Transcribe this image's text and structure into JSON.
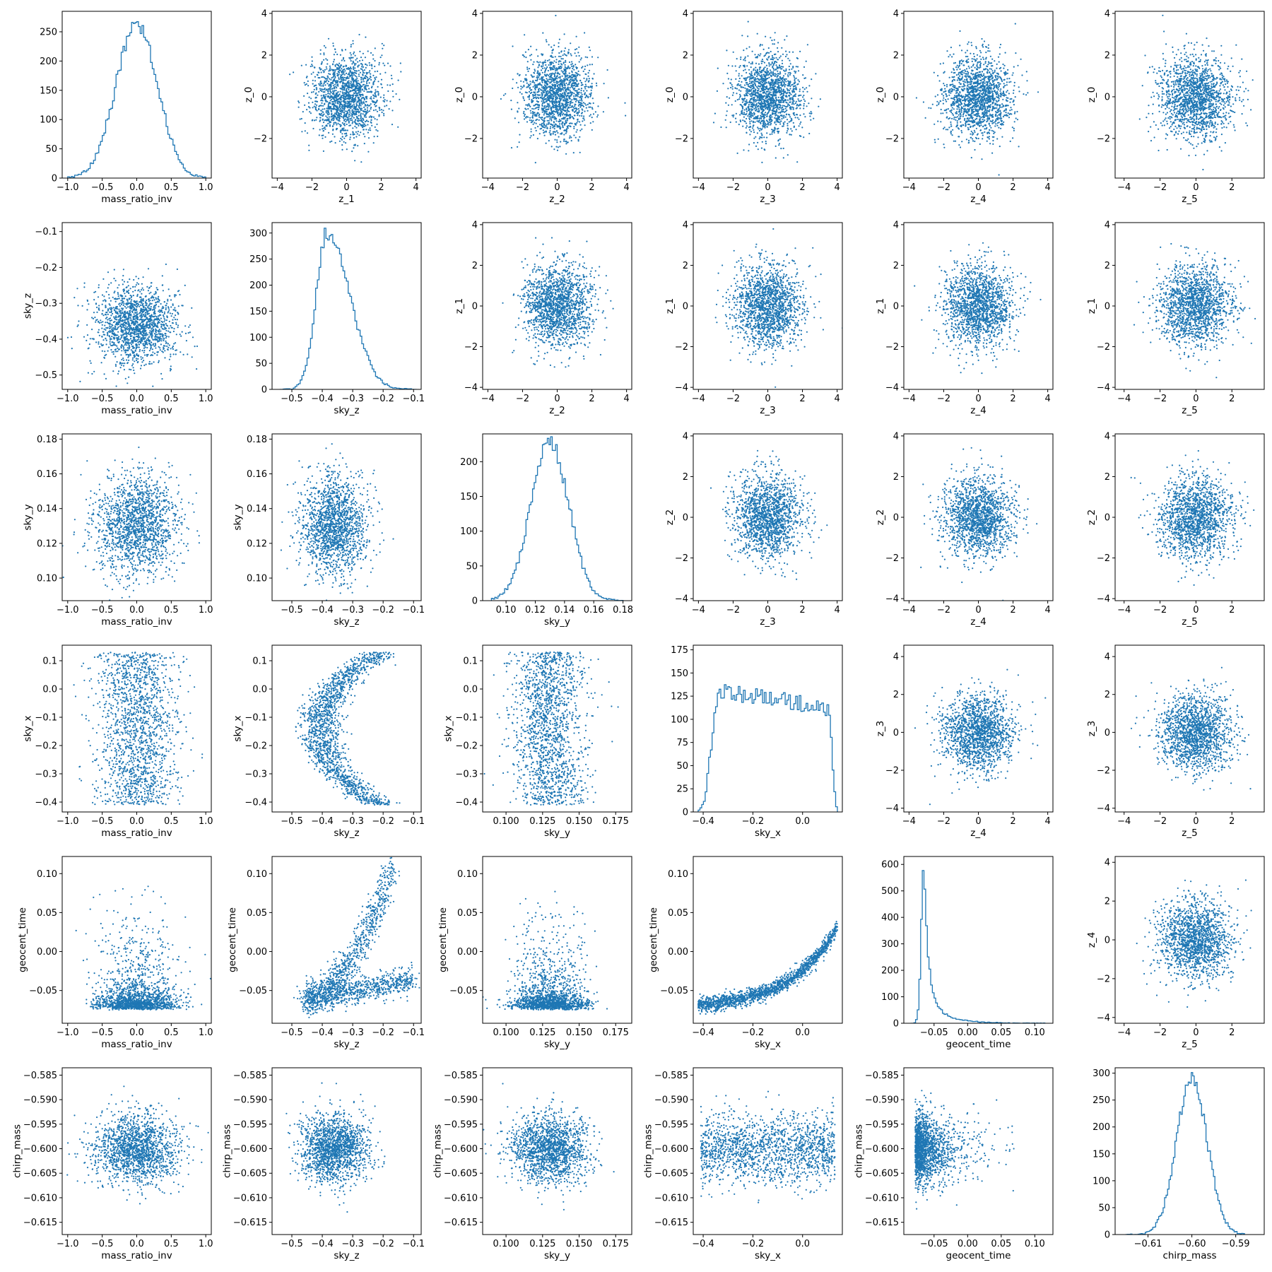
{
  "figure": {
    "layout": "6x6 corner plot",
    "marker_color": "#1f77b4"
  },
  "chart_data": [
    {
      "type": "histogram",
      "row": 0,
      "col": 0,
      "xlabel": "mass_ratio_inv",
      "ylabel": "",
      "xlim": [
        -1.08,
        1.08
      ],
      "ylim": [
        0,
        285
      ],
      "xticks": [
        -1.0,
        -0.5,
        0.0,
        0.5,
        1.0
      ],
      "yticks": [
        0,
        50,
        100,
        150,
        200,
        250
      ],
      "shape": {
        "kind": "normal",
        "peak": 265,
        "mean": 0.0,
        "sd": 0.3,
        "range": [
          -1.0,
          1.0
        ]
      }
    },
    {
      "type": "scatter",
      "row": 0,
      "col": 1,
      "xlabel": "z_1",
      "ylabel": "z_0",
      "xlim": [
        -4.3,
        4.3
      ],
      "ylim": [
        -3.9,
        4.1
      ],
      "xticks": [
        -4,
        -2,
        0,
        2,
        4
      ],
      "yticks": [
        -2,
        0,
        2,
        4
      ],
      "shape": {
        "kind": "gauss",
        "mx": 0,
        "sx": 1,
        "my": 0,
        "sy": 1
      }
    },
    {
      "type": "scatter",
      "row": 0,
      "col": 2,
      "xlabel": "z_2",
      "ylabel": "z_0",
      "xlim": [
        -4.3,
        4.3
      ],
      "ylim": [
        -3.9,
        4.1
      ],
      "xticks": [
        -4,
        -2,
        0,
        2,
        4
      ],
      "yticks": [
        -2,
        0,
        2,
        4
      ],
      "shape": {
        "kind": "gauss",
        "mx": 0,
        "sx": 1,
        "my": 0,
        "sy": 1
      }
    },
    {
      "type": "scatter",
      "row": 0,
      "col": 3,
      "xlabel": "z_3",
      "ylabel": "z_0",
      "xlim": [
        -4.3,
        4.3
      ],
      "ylim": [
        -3.9,
        4.1
      ],
      "xticks": [
        -4,
        -2,
        0,
        2,
        4
      ],
      "yticks": [
        -2,
        0,
        2,
        4
      ],
      "shape": {
        "kind": "gauss",
        "mx": 0,
        "sx": 1,
        "my": 0,
        "sy": 1
      }
    },
    {
      "type": "scatter",
      "row": 0,
      "col": 4,
      "xlabel": "z_4",
      "ylabel": "z_0",
      "xlim": [
        -4.3,
        4.3
      ],
      "ylim": [
        -3.9,
        4.1
      ],
      "xticks": [
        -4,
        -2,
        0,
        2,
        4
      ],
      "yticks": [
        -2,
        0,
        2,
        4
      ],
      "shape": {
        "kind": "gauss",
        "mx": 0,
        "sx": 1,
        "my": 0,
        "sy": 1
      }
    },
    {
      "type": "scatter",
      "row": 0,
      "col": 5,
      "xlabel": "z_5",
      "ylabel": "z_0",
      "xlim": [
        -4.5,
        3.8
      ],
      "ylim": [
        -3.9,
        4.1
      ],
      "xticks": [
        -4,
        -2,
        0,
        2
      ],
      "yticks": [
        -2,
        0,
        2,
        4
      ],
      "shape": {
        "kind": "gauss",
        "mx": 0,
        "sx": 1,
        "my": 0,
        "sy": 1
      }
    },
    {
      "type": "scatter",
      "row": 1,
      "col": 0,
      "xlabel": "mass_ratio_inv",
      "ylabel": "sky_z",
      "xlim": [
        -1.08,
        1.08
      ],
      "ylim": [
        -0.54,
        -0.075
      ],
      "xticks": [
        -1.0,
        -0.5,
        0.0,
        0.5,
        1.0
      ],
      "yticks": [
        -0.5,
        -0.4,
        -0.3,
        -0.2,
        -0.1
      ],
      "shape": {
        "kind": "gauss",
        "mx": 0,
        "sx": 0.3,
        "my": -0.36,
        "sy": 0.055
      }
    },
    {
      "type": "histogram",
      "row": 1,
      "col": 1,
      "xlabel": "sky_z",
      "ylabel": "",
      "xlim": [
        -0.565,
        -0.075
      ],
      "ylim": [
        0,
        320
      ],
      "xticks": [
        -0.5,
        -0.4,
        -0.3,
        -0.2,
        -0.1
      ],
      "yticks": [
        0,
        50,
        100,
        150,
        200,
        250,
        300
      ],
      "shape": {
        "kind": "skew",
        "peak": 300,
        "mode": -0.385,
        "sdl": 0.035,
        "sdr": 0.075,
        "range": [
          -0.54,
          -0.09
        ]
      }
    },
    {
      "type": "scatter",
      "row": 1,
      "col": 2,
      "xlabel": "z_2",
      "ylabel": "z_1",
      "xlim": [
        -4.3,
        4.3
      ],
      "ylim": [
        -4.1,
        4.1
      ],
      "xticks": [
        -4,
        -2,
        0,
        2,
        4
      ],
      "yticks": [
        -4,
        -2,
        0,
        2,
        4
      ],
      "shape": {
        "kind": "gauss",
        "mx": 0,
        "sx": 1,
        "my": 0,
        "sy": 1
      }
    },
    {
      "type": "scatter",
      "row": 1,
      "col": 3,
      "xlabel": "z_3",
      "ylabel": "z_1",
      "xlim": [
        -4.3,
        4.3
      ],
      "ylim": [
        -4.1,
        4.1
      ],
      "xticks": [
        -4,
        -2,
        0,
        2,
        4
      ],
      "yticks": [
        -4,
        -2,
        0,
        2,
        4
      ],
      "shape": {
        "kind": "gauss",
        "mx": 0,
        "sx": 1,
        "my": 0,
        "sy": 1
      }
    },
    {
      "type": "scatter",
      "row": 1,
      "col": 4,
      "xlabel": "z_4",
      "ylabel": "z_1",
      "xlim": [
        -4.3,
        4.3
      ],
      "ylim": [
        -4.1,
        4.1
      ],
      "xticks": [
        -4,
        -2,
        0,
        2,
        4
      ],
      "yticks": [
        -4,
        -2,
        0,
        2,
        4
      ],
      "shape": {
        "kind": "gauss",
        "mx": 0,
        "sx": 1,
        "my": 0,
        "sy": 1
      }
    },
    {
      "type": "scatter",
      "row": 1,
      "col": 5,
      "xlabel": "z_5",
      "ylabel": "z_1",
      "xlim": [
        -4.5,
        3.8
      ],
      "ylim": [
        -4.1,
        4.1
      ],
      "xticks": [
        -4,
        -2,
        0,
        2
      ],
      "yticks": [
        -4,
        -2,
        0,
        2,
        4
      ],
      "shape": {
        "kind": "gauss",
        "mx": 0,
        "sx": 1,
        "my": 0,
        "sy": 1
      }
    },
    {
      "type": "scatter",
      "row": 2,
      "col": 0,
      "xlabel": "mass_ratio_inv",
      "ylabel": "sky_y",
      "xlim": [
        -1.08,
        1.08
      ],
      "ylim": [
        0.087,
        0.183
      ],
      "xticks": [
        -1.0,
        -0.5,
        0.0,
        0.5,
        1.0
      ],
      "yticks": [
        0.1,
        0.12,
        0.14,
        0.16,
        0.18
      ],
      "shape": {
        "kind": "gauss",
        "mx": 0,
        "sx": 0.3,
        "my": 0.13,
        "sy": 0.014
      }
    },
    {
      "type": "scatter",
      "row": 2,
      "col": 1,
      "xlabel": "sky_z",
      "ylabel": "sky_y",
      "xlim": [
        -0.565,
        -0.075
      ],
      "ylim": [
        0.087,
        0.183
      ],
      "xticks": [
        -0.5,
        -0.4,
        -0.3,
        -0.2,
        -0.1
      ],
      "yticks": [
        0.1,
        0.12,
        0.14,
        0.16,
        0.18
      ],
      "shape": {
        "kind": "gauss",
        "mx": -0.36,
        "sx": 0.055,
        "my": 0.13,
        "sy": 0.014
      }
    },
    {
      "type": "histogram",
      "row": 2,
      "col": 2,
      "xlabel": "sky_y",
      "ylabel": "",
      "xlim": [
        0.084,
        0.186
      ],
      "ylim": [
        0,
        240
      ],
      "xticks": [
        0.1,
        0.12,
        0.14,
        0.16,
        0.18
      ],
      "yticks": [
        0,
        50,
        100,
        150,
        200
      ],
      "shape": {
        "kind": "normal",
        "peak": 228,
        "mean": 0.13,
        "sd": 0.013,
        "range": [
          0.09,
          0.18
        ]
      }
    },
    {
      "type": "scatter",
      "row": 2,
      "col": 3,
      "xlabel": "z_3",
      "ylabel": "z_2",
      "xlim": [
        -4.3,
        4.3
      ],
      "ylim": [
        -4.1,
        4.1
      ],
      "xticks": [
        -4,
        -2,
        0,
        2,
        4
      ],
      "yticks": [
        -4,
        -2,
        0,
        2,
        4
      ],
      "shape": {
        "kind": "gauss",
        "mx": 0,
        "sx": 1,
        "my": 0,
        "sy": 1
      }
    },
    {
      "type": "scatter",
      "row": 2,
      "col": 4,
      "xlabel": "z_4",
      "ylabel": "z_2",
      "xlim": [
        -4.3,
        4.3
      ],
      "ylim": [
        -4.1,
        4.1
      ],
      "xticks": [
        -4,
        -2,
        0,
        2,
        4
      ],
      "yticks": [
        -4,
        -2,
        0,
        2,
        4
      ],
      "shape": {
        "kind": "gauss",
        "mx": 0,
        "sx": 1,
        "my": 0,
        "sy": 1
      }
    },
    {
      "type": "scatter",
      "row": 2,
      "col": 5,
      "xlabel": "z_5",
      "ylabel": "z_2",
      "xlim": [
        -4.5,
        3.8
      ],
      "ylim": [
        -4.1,
        4.1
      ],
      "xticks": [
        -4,
        -2,
        0,
        2
      ],
      "yticks": [
        -4,
        -2,
        0,
        2,
        4
      ],
      "shape": {
        "kind": "gauss",
        "mx": 0,
        "sx": 1,
        "my": 0,
        "sy": 1
      }
    },
    {
      "type": "scatter",
      "row": 3,
      "col": 0,
      "xlabel": "mass_ratio_inv",
      "ylabel": "sky_x",
      "xlim": [
        -1.08,
        1.08
      ],
      "ylim": [
        -0.435,
        0.155
      ],
      "xticks": [
        -1.0,
        -0.5,
        0.0,
        0.5,
        1.0
      ],
      "yticks": [
        -0.4,
        -0.3,
        -0.2,
        -0.1,
        0.0,
        0.1
      ],
      "shape": {
        "kind": "gauss_uniform",
        "mx": 0,
        "sx": 0.3,
        "ymin": -0.41,
        "ymax": 0.13
      }
    },
    {
      "type": "scatter",
      "row": 3,
      "col": 1,
      "xlabel": "sky_z",
      "ylabel": "sky_x",
      "xlim": [
        -0.565,
        -0.075
      ],
      "ylim": [
        -0.435,
        0.155
      ],
      "xticks": [
        -0.5,
        -0.4,
        -0.3,
        -0.2,
        -0.1
      ],
      "yticks": [
        -0.4,
        -0.3,
        -0.2,
        -0.1,
        0.0,
        0.1
      ],
      "shape": {
        "kind": "crescent",
        "ymin": -0.41,
        "ymax": 0.13
      }
    },
    {
      "type": "scatter",
      "row": 3,
      "col": 2,
      "xlabel": "sky_y",
      "ylabel": "sky_x",
      "xlim": [
        0.084,
        0.186
      ],
      "ylim": [
        -0.435,
        0.155
      ],
      "xticks": [
        0.1,
        0.125,
        0.15,
        0.175
      ],
      "yticks": [
        -0.4,
        -0.3,
        -0.2,
        -0.1,
        0.0,
        0.1
      ],
      "shape": {
        "kind": "gauss_uniform",
        "mx": 0.13,
        "sx": 0.012,
        "ymin": -0.41,
        "ymax": 0.13
      }
    },
    {
      "type": "histogram",
      "row": 3,
      "col": 3,
      "xlabel": "sky_x",
      "ylabel": "",
      "xlim": [
        -0.44,
        0.16
      ],
      "ylim": [
        0,
        180
      ],
      "xticks": [
        -0.4,
        -0.2,
        0.0
      ],
      "yticks": [
        0,
        25,
        50,
        75,
        100,
        125,
        150,
        175
      ],
      "shape": {
        "kind": "plateau",
        "height": 135,
        "range": [
          -0.42,
          0.14
        ]
      }
    },
    {
      "type": "scatter",
      "row": 3,
      "col": 4,
      "xlabel": "z_4",
      "ylabel": "z_3",
      "xlim": [
        -4.3,
        4.3
      ],
      "ylim": [
        -4.2,
        4.6
      ],
      "xticks": [
        -4,
        -2,
        0,
        2,
        4
      ],
      "yticks": [
        -4,
        -2,
        0,
        2,
        4
      ],
      "shape": {
        "kind": "gauss",
        "mx": 0,
        "sx": 1,
        "my": 0,
        "sy": 1
      }
    },
    {
      "type": "scatter",
      "row": 3,
      "col": 5,
      "xlabel": "z_5",
      "ylabel": "z_3",
      "xlim": [
        -4.5,
        3.8
      ],
      "ylim": [
        -4.2,
        4.6
      ],
      "xticks": [
        -4,
        -2,
        0,
        2
      ],
      "yticks": [
        -4,
        -2,
        0,
        2,
        4
      ],
      "shape": {
        "kind": "gauss",
        "mx": 0,
        "sx": 1,
        "my": 0,
        "sy": 1
      }
    },
    {
      "type": "scatter",
      "row": 4,
      "col": 0,
      "xlabel": "mass_ratio_inv",
      "ylabel": "geocent_time",
      "xlim": [
        -1.08,
        1.08
      ],
      "ylim": [
        -0.092,
        0.122
      ],
      "xticks": [
        -1.0,
        -0.5,
        0.0,
        0.5,
        1.0
      ],
      "yticks": [
        -0.05,
        0.0,
        0.05,
        0.1
      ],
      "shape": {
        "kind": "gauss_skew",
        "mx": 0,
        "sx": 0.3,
        "floor": -0.075,
        "scale": 0.04
      }
    },
    {
      "type": "scatter",
      "row": 4,
      "col": 1,
      "xlabel": "sky_z",
      "ylabel": "geocent_time",
      "xlim": [
        -0.565,
        -0.075
      ],
      "ylim": [
        -0.092,
        0.122
      ],
      "xticks": [
        -0.5,
        -0.4,
        -0.3,
        -0.2,
        -0.1
      ],
      "yticks": [
        -0.05,
        0.0,
        0.05,
        0.1
      ],
      "shape": {
        "kind": "chevron"
      }
    },
    {
      "type": "scatter",
      "row": 4,
      "col": 2,
      "xlabel": "sky_y",
      "ylabel": "geocent_time",
      "xlim": [
        0.084,
        0.186
      ],
      "ylim": [
        -0.092,
        0.122
      ],
      "xticks": [
        0.1,
        0.125,
        0.15,
        0.175
      ],
      "yticks": [
        -0.05,
        0.0,
        0.05,
        0.1
      ],
      "shape": {
        "kind": "gauss_skew",
        "mx": 0.13,
        "sx": 0.013,
        "floor": -0.075,
        "scale": 0.04
      }
    },
    {
      "type": "scatter",
      "row": 4,
      "col": 3,
      "xlabel": "sky_x",
      "ylabel": "geocent_time",
      "xlim": [
        -0.44,
        0.16
      ],
      "ylim": [
        -0.092,
        0.122
      ],
      "xticks": [
        -0.4,
        -0.2,
        0.0
      ],
      "yticks": [
        -0.05,
        0.0,
        0.05,
        0.1
      ],
      "shape": {
        "kind": "curve"
      }
    },
    {
      "type": "histogram",
      "row": 4,
      "col": 4,
      "xlabel": "geocent_time",
      "ylabel": "",
      "xlim": [
        -0.095,
        0.127
      ],
      "ylim": [
        0,
        630
      ],
      "xticks": [
        -0.05,
        0.0,
        0.05,
        0.1
      ],
      "yticks": [
        0,
        100,
        200,
        300,
        400,
        500,
        600
      ],
      "shape": {
        "kind": "spike",
        "peak": 600,
        "mode": -0.065,
        "sdl": 0.004,
        "tau": 0.03,
        "range": [
          -0.085,
          0.115
        ]
      }
    },
    {
      "type": "scatter",
      "row": 4,
      "col": 5,
      "xlabel": "z_5",
      "ylabel": "z_4",
      "xlim": [
        -4.5,
        3.8
      ],
      "ylim": [
        -4.3,
        4.3
      ],
      "xticks": [
        -4,
        -2,
        0,
        2
      ],
      "yticks": [
        -4,
        -2,
        0,
        2,
        4
      ],
      "shape": {
        "kind": "gauss",
        "mx": 0,
        "sx": 1,
        "my": 0,
        "sy": 1
      }
    },
    {
      "type": "scatter",
      "row": 5,
      "col": 0,
      "xlabel": "mass_ratio_inv",
      "ylabel": "chirp_mass",
      "xlim": [
        -1.08,
        1.08
      ],
      "ylim": [
        -0.6175,
        -0.5835
      ],
      "xticks": [
        -1.0,
        -0.5,
        0.0,
        0.5,
        1.0
      ],
      "yticks": [
        -0.615,
        -0.61,
        -0.605,
        -0.6,
        -0.595,
        -0.59,
        -0.585
      ],
      "shape": {
        "kind": "gauss",
        "mx": 0,
        "sx": 0.3,
        "my": -0.6,
        "sy": 0.0035
      }
    },
    {
      "type": "scatter",
      "row": 5,
      "col": 1,
      "xlabel": "sky_z",
      "ylabel": "chirp_mass",
      "xlim": [
        -0.565,
        -0.075
      ],
      "ylim": [
        -0.6175,
        -0.5835
      ],
      "xticks": [
        -0.5,
        -0.4,
        -0.3,
        -0.2,
        -0.1
      ],
      "yticks": [
        -0.615,
        -0.61,
        -0.605,
        -0.6,
        -0.595,
        -0.59,
        -0.585
      ],
      "shape": {
        "kind": "gauss",
        "mx": -0.36,
        "sx": 0.055,
        "my": -0.6,
        "sy": 0.0035
      }
    },
    {
      "type": "scatter",
      "row": 5,
      "col": 2,
      "xlabel": "sky_y",
      "ylabel": "chirp_mass",
      "xlim": [
        0.084,
        0.186
      ],
      "ylim": [
        -0.6175,
        -0.5835
      ],
      "xticks": [
        0.1,
        0.125,
        0.15,
        0.175
      ],
      "yticks": [
        -0.615,
        -0.61,
        -0.605,
        -0.6,
        -0.595,
        -0.59,
        -0.585
      ],
      "shape": {
        "kind": "gauss",
        "mx": 0.13,
        "sx": 0.013,
        "my": -0.6,
        "sy": 0.0035
      }
    },
    {
      "type": "scatter",
      "row": 5,
      "col": 3,
      "xlabel": "sky_x",
      "ylabel": "chirp_mass",
      "xlim": [
        -0.44,
        0.16
      ],
      "ylim": [
        -0.6175,
        -0.5835
      ],
      "xticks": [
        -0.4,
        -0.2,
        0.0
      ],
      "yticks": [
        -0.615,
        -0.61,
        -0.605,
        -0.6,
        -0.595,
        -0.59,
        -0.585
      ],
      "shape": {
        "kind": "uniform_gauss",
        "xmin": -0.41,
        "xmax": 0.13,
        "my": -0.6,
        "sy": 0.0035
      }
    },
    {
      "type": "scatter",
      "row": 5,
      "col": 4,
      "xlabel": "geocent_time",
      "ylabel": "chirp_mass",
      "xlim": [
        -0.095,
        0.127
      ],
      "ylim": [
        -0.6175,
        -0.5835
      ],
      "xticks": [
        -0.05,
        0.0,
        0.05,
        0.1
      ],
      "yticks": [
        -0.615,
        -0.61,
        -0.605,
        -0.6,
        -0.595,
        -0.59,
        -0.585
      ],
      "shape": {
        "kind": "skewx_gauss",
        "floor": -0.078,
        "scale": 0.035,
        "my": -0.6,
        "sy": 0.0035
      }
    },
    {
      "type": "histogram",
      "row": 5,
      "col": 5,
      "xlabel": "chirp_mass",
      "ylabel": "",
      "xlim": [
        -0.6175,
        -0.5835
      ],
      "ylim": [
        0,
        310
      ],
      "xticks": [
        -0.61,
        -0.6,
        -0.59
      ],
      "yticks": [
        0,
        50,
        100,
        150,
        200,
        250,
        300
      ],
      "shape": {
        "kind": "normal",
        "peak": 290,
        "mean": -0.6,
        "sd": 0.0035,
        "range": [
          -0.615,
          -0.588
        ]
      }
    }
  ]
}
